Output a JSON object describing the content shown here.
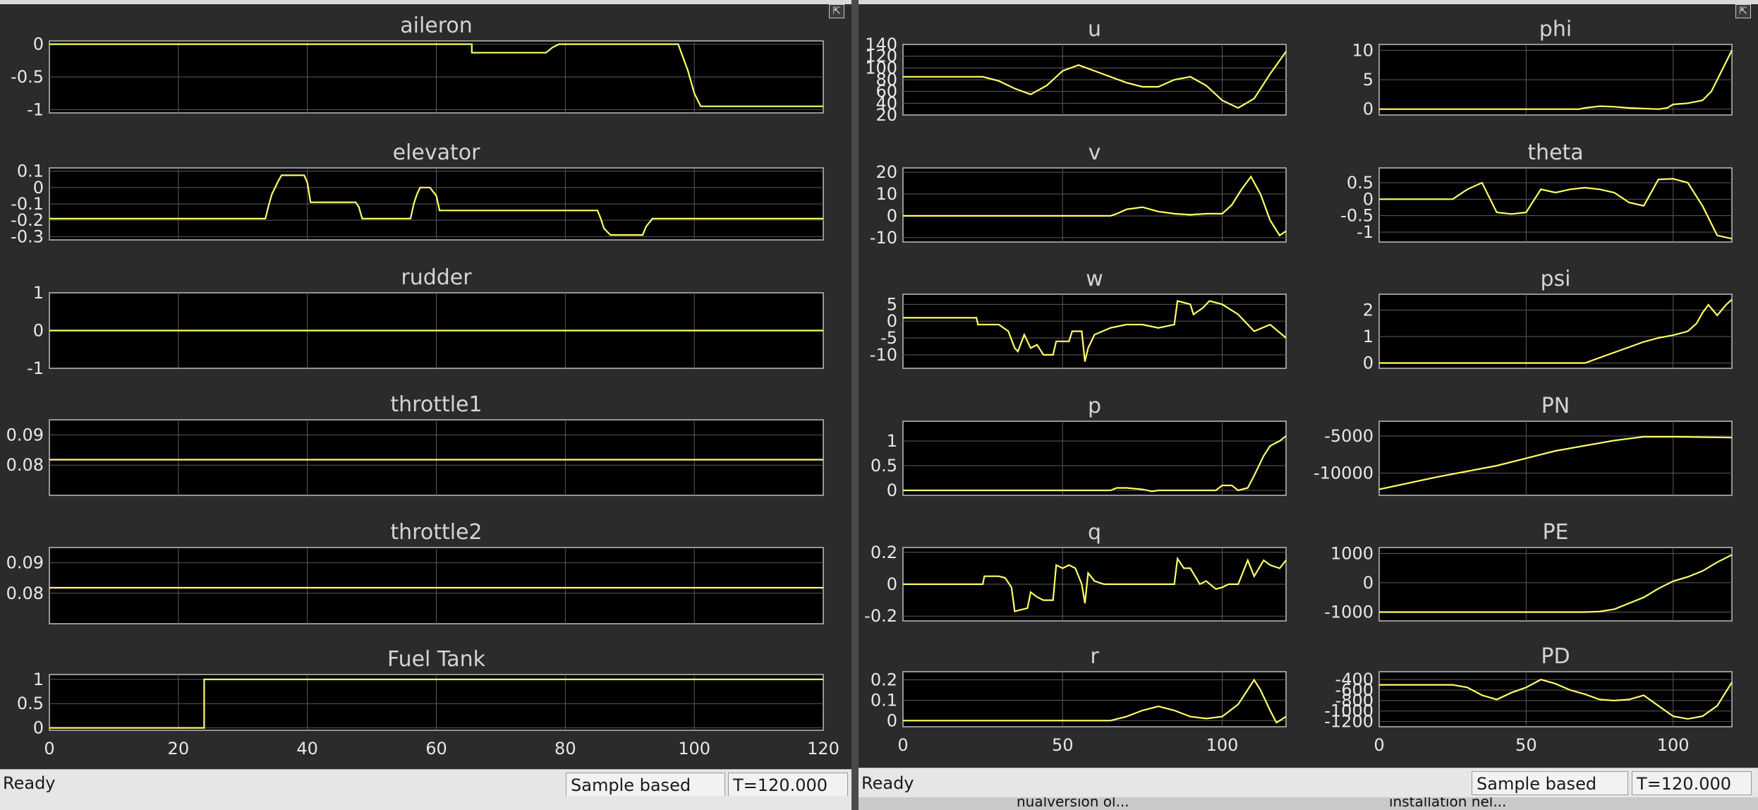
{
  "left_window": {
    "status": "Ready",
    "mode": "Sample based",
    "time": "T=120.000"
  },
  "right_window": {
    "status": "Ready",
    "mode": "Sample based",
    "time": "T=120.000"
  },
  "undock_icon": "undock-icon",
  "trace_color": "#ffff66",
  "background_fragments": [
    "nualversion ol...",
    "installation nel..."
  ],
  "chart_data": [
    {
      "id": "aileron",
      "type": "line",
      "title": "aileron",
      "xlim": [
        0,
        120
      ],
      "ylim": [
        -1.05,
        0.05
      ],
      "yticks": [
        0,
        -0.5,
        -1
      ],
      "yticklabels": [
        "0",
        "-0.5",
        "-1"
      ],
      "grid": true,
      "x": [
        0,
        65.5,
        65.5,
        77,
        78,
        79,
        97.5,
        99,
        100,
        101,
        120
      ],
      "y": [
        0,
        0,
        -0.13,
        -0.13,
        -0.05,
        0,
        0,
        -0.4,
        -0.75,
        -0.95,
        -0.95
      ]
    },
    {
      "id": "elevator",
      "type": "line",
      "title": "elevator",
      "xlim": [
        0,
        120
      ],
      "ylim": [
        -0.32,
        0.12
      ],
      "yticks": [
        0.1,
        0,
        -0.1,
        -0.2,
        -0.3
      ],
      "yticklabels": [
        "0.1",
        "0",
        "-0.1",
        "-0.2",
        "-0.3"
      ],
      "grid": true,
      "x": [
        0,
        33.5,
        34,
        34.5,
        35,
        35.5,
        36,
        39.5,
        40,
        40.5,
        47.5,
        48,
        48.5,
        56,
        56.5,
        57,
        57.5,
        59,
        60,
        60.5,
        85,
        85.5,
        86,
        87,
        92,
        92.5,
        93.5,
        120
      ],
      "y": [
        -0.19,
        -0.19,
        -0.11,
        -0.04,
        0.0,
        0.04,
        0.075,
        0.075,
        0.03,
        -0.09,
        -0.09,
        -0.12,
        -0.19,
        -0.19,
        -0.1,
        -0.04,
        0.0,
        0.0,
        -0.05,
        -0.14,
        -0.14,
        -0.19,
        -0.25,
        -0.29,
        -0.29,
        -0.24,
        -0.19,
        -0.19
      ]
    },
    {
      "id": "rudder",
      "type": "line",
      "title": "rudder",
      "xlim": [
        0,
        120
      ],
      "ylim": [
        -1,
        1
      ],
      "yticks": [
        1,
        0,
        -1
      ],
      "yticklabels": [
        "1",
        "0",
        "-1"
      ],
      "grid": true,
      "x": [
        0,
        120
      ],
      "y": [
        0,
        0
      ]
    },
    {
      "id": "throttle1",
      "type": "line",
      "title": "throttle1",
      "xlim": [
        0,
        120
      ],
      "ylim": [
        0.07,
        0.095
      ],
      "yticks": [
        0.09,
        0.08
      ],
      "yticklabels": [
        "0.09",
        "0.08"
      ],
      "grid": true,
      "x": [
        0,
        120
      ],
      "y": [
        0.0818,
        0.0818
      ]
    },
    {
      "id": "throttle2",
      "type": "line",
      "title": "throttle2",
      "xlim": [
        0,
        120
      ],
      "ylim": [
        0.07,
        0.095
      ],
      "yticks": [
        0.09,
        0.08
      ],
      "yticklabels": [
        "0.09",
        "0.08"
      ],
      "grid": true,
      "x": [
        0,
        120
      ],
      "y": [
        0.0818,
        0.0818
      ]
    },
    {
      "id": "fuel_tank",
      "type": "line",
      "title": "Fuel Tank",
      "xlim": [
        0,
        120
      ],
      "ylim": [
        -0.05,
        1.1
      ],
      "yticks": [
        1,
        0.5,
        0
      ],
      "yticklabels": [
        "1",
        "0.5",
        "0"
      ],
      "grid": true,
      "xticks": [
        0,
        20,
        40,
        60,
        80,
        100,
        120
      ],
      "xticklabels": [
        "0",
        "20",
        "40",
        "60",
        "80",
        "100",
        "120"
      ],
      "x": [
        0,
        24,
        24,
        120
      ],
      "y": [
        0,
        0,
        1,
        1
      ]
    },
    {
      "id": "u",
      "type": "line",
      "title": "u",
      "xlim": [
        0,
        120
      ],
      "ylim": [
        20,
        140
      ],
      "yticks": [
        140,
        120,
        100,
        80,
        60,
        40,
        20
      ],
      "yticklabels": [
        "140",
        "120",
        "100",
        "80",
        "60",
        "40",
        "20"
      ],
      "grid": true,
      "x": [
        0,
        25,
        30,
        35,
        40,
        45,
        50,
        55,
        60,
        65,
        70,
        75,
        80,
        85,
        90,
        95,
        100,
        105,
        110,
        115,
        120
      ],
      "y": [
        85,
        85,
        78,
        65,
        55,
        70,
        95,
        105,
        95,
        85,
        75,
        68,
        68,
        80,
        85,
        70,
        45,
        32,
        48,
        90,
        128
      ]
    },
    {
      "id": "phi",
      "type": "line",
      "title": "phi",
      "xlim": [
        0,
        120
      ],
      "ylim": [
        -1,
        11
      ],
      "yticks": [
        10,
        5,
        0
      ],
      "yticklabels": [
        "10",
        "5",
        "0"
      ],
      "grid": true,
      "x": [
        0,
        68,
        70,
        75,
        80,
        85,
        90,
        95,
        98,
        100,
        105,
        110,
        113,
        115,
        118,
        120
      ],
      "y": [
        0,
        0,
        0.2,
        0.5,
        0.4,
        0.2,
        0.1,
        0,
        0.2,
        0.8,
        1,
        1.5,
        3,
        5,
        8,
        10
      ]
    },
    {
      "id": "v",
      "type": "line",
      "title": "v",
      "xlim": [
        0,
        120
      ],
      "ylim": [
        -12,
        22
      ],
      "yticks": [
        20,
        10,
        0,
        -10
      ],
      "yticklabels": [
        "20",
        "10",
        "0",
        "-10"
      ],
      "grid": true,
      "x": [
        0,
        65,
        67,
        70,
        75,
        80,
        85,
        90,
        95,
        100,
        103,
        106,
        109,
        112,
        115,
        118,
        120
      ],
      "y": [
        0,
        0,
        1,
        3,
        4,
        2,
        1,
        0.5,
        1,
        1,
        5,
        12,
        18,
        10,
        -2,
        -9,
        -7
      ]
    },
    {
      "id": "theta",
      "type": "line",
      "title": "theta",
      "xlim": [
        0,
        120
      ],
      "ylim": [
        -1.3,
        0.95
      ],
      "yticks": [
        0.5,
        0,
        -0.5,
        -1
      ],
      "yticklabels": [
        "0.5",
        "0",
        "-0.5",
        "-1"
      ],
      "grid": true,
      "x": [
        0,
        25,
        30,
        35,
        40,
        45,
        50,
        55,
        60,
        65,
        70,
        75,
        80,
        85,
        90,
        95,
        100,
        105,
        110,
        115,
        120
      ],
      "y": [
        0,
        0,
        0.3,
        0.5,
        -0.4,
        -0.45,
        -0.4,
        0.3,
        0.2,
        0.3,
        0.35,
        0.3,
        0.2,
        -0.1,
        -0.2,
        0.6,
        0.62,
        0.5,
        -0.2,
        -1.1,
        -1.2
      ]
    },
    {
      "id": "w",
      "type": "line",
      "title": "w",
      "xlim": [
        0,
        120
      ],
      "ylim": [
        -14,
        8
      ],
      "yticks": [
        5,
        0,
        -5,
        -10
      ],
      "yticklabels": [
        "5",
        "0",
        "-5",
        "-10"
      ],
      "grid": true,
      "x": [
        0,
        23,
        23.5,
        30,
        33,
        35,
        36,
        38,
        40,
        42,
        44,
        47,
        48,
        52,
        53,
        56,
        57,
        58,
        60,
        65,
        70,
        75,
        80,
        85,
        86,
        90,
        91,
        94,
        96,
        100,
        105,
        110,
        115,
        120
      ],
      "y": [
        1,
        1,
        -1,
        -1,
        -3,
        -8,
        -9,
        -4,
        -8,
        -7,
        -10,
        -10,
        -6,
        -6,
        -3,
        -3,
        -12,
        -8,
        -4,
        -2,
        -1,
        -1,
        -2,
        -1,
        6,
        5,
        2,
        4,
        6,
        5,
        2,
        -3,
        -1,
        -5
      ]
    },
    {
      "id": "psi",
      "type": "line",
      "title": "psi",
      "xlim": [
        0,
        120
      ],
      "ylim": [
        -0.2,
        2.6
      ],
      "yticks": [
        2,
        1,
        0
      ],
      "yticklabels": [
        "2",
        "1",
        "0"
      ],
      "grid": true,
      "x": [
        0,
        70,
        75,
        80,
        85,
        90,
        95,
        100,
        105,
        108,
        110,
        112,
        115,
        118,
        120
      ],
      "y": [
        0,
        0,
        0.2,
        0.4,
        0.6,
        0.8,
        0.95,
        1.05,
        1.2,
        1.5,
        1.9,
        2.2,
        1.8,
        2.2,
        2.4
      ]
    },
    {
      "id": "p",
      "type": "line",
      "title": "p",
      "xlim": [
        0,
        120
      ],
      "ylim": [
        -0.1,
        1.4
      ],
      "yticks": [
        1,
        0.5,
        0
      ],
      "yticklabels": [
        "1",
        "0.5",
        "0"
      ],
      "grid": true,
      "x": [
        0,
        65,
        67,
        70,
        75,
        78,
        80,
        85,
        90,
        95,
        98,
        100,
        103,
        105,
        108,
        110,
        113,
        115,
        118,
        120
      ],
      "y": [
        0,
        0,
        0.05,
        0.05,
        0.02,
        -0.02,
        0,
        0,
        0,
        0,
        0,
        0.1,
        0.1,
        0,
        0.05,
        0.3,
        0.7,
        0.9,
        1.0,
        1.1
      ]
    },
    {
      "id": "PN",
      "type": "line",
      "title": "PN",
      "xlim": [
        0,
        120
      ],
      "ylim": [
        -13000,
        -3000
      ],
      "yticks": [
        -5000,
        -10000
      ],
      "yticklabels": [
        "-5000",
        "-10000"
      ],
      "grid": true,
      "x": [
        0,
        20,
        40,
        60,
        80,
        90,
        100,
        120
      ],
      "y": [
        -12200,
        -10500,
        -9000,
        -7000,
        -5600,
        -5100,
        -5100,
        -5200
      ]
    },
    {
      "id": "q",
      "type": "line",
      "title": "q",
      "xlim": [
        0,
        120
      ],
      "ylim": [
        -0.23,
        0.23
      ],
      "yticks": [
        0.2,
        0,
        -0.2
      ],
      "yticklabels": [
        "0.2",
        "0",
        "-0.2"
      ],
      "grid": true,
      "x": [
        0,
        25,
        25.5,
        30,
        32,
        34,
        35,
        37,
        39,
        40,
        42,
        44,
        47,
        48,
        50,
        52,
        54,
        56,
        57,
        58,
        60,
        63,
        65,
        70,
        75,
        80,
        85,
        86,
        88,
        90,
        93,
        95,
        98,
        100,
        102,
        105,
        108,
        110,
        113,
        115,
        118,
        120
      ],
      "y": [
        0,
        0,
        0.05,
        0.05,
        0.04,
        -0.02,
        -0.17,
        -0.16,
        -0.15,
        -0.05,
        -0.08,
        -0.1,
        -0.1,
        0.12,
        0.1,
        0.12,
        0.1,
        0,
        -0.12,
        0.07,
        0.02,
        0,
        0,
        0,
        0,
        0,
        0,
        0.16,
        0.1,
        0.1,
        0.0,
        0.02,
        -0.03,
        -0.02,
        0,
        0,
        0.15,
        0.05,
        0.15,
        0.12,
        0.1,
        0.15
      ]
    },
    {
      "id": "PE",
      "type": "line",
      "title": "PE",
      "xlim": [
        0,
        120
      ],
      "ylim": [
        -1300,
        1200
      ],
      "yticks": [
        1000,
        0,
        -1000
      ],
      "yticklabels": [
        "1000",
        "0",
        "-1000"
      ],
      "grid": true,
      "x": [
        0,
        65,
        70,
        75,
        80,
        85,
        90,
        95,
        100,
        105,
        110,
        115,
        120
      ],
      "y": [
        -1000,
        -1000,
        -1000,
        -980,
        -900,
        -700,
        -500,
        -200,
        50,
        200,
        400,
        700,
        950
      ]
    },
    {
      "id": "r",
      "type": "line",
      "title": "r",
      "xlim": [
        0,
        120
      ],
      "ylim": [
        -0.03,
        0.24
      ],
      "yticks": [
        0.2,
        0.1,
        0
      ],
      "yticklabels": [
        "0.2",
        "0.1",
        "0"
      ],
      "grid": true,
      "xticks": [
        0,
        50,
        100
      ],
      "xticklabels": [
        "0",
        "50",
        "100"
      ],
      "x": [
        0,
        65,
        70,
        75,
        80,
        85,
        90,
        95,
        100,
        105,
        110,
        112,
        115,
        117,
        120
      ],
      "y": [
        0,
        0,
        0.02,
        0.05,
        0.07,
        0.05,
        0.02,
        0.01,
        0.02,
        0.08,
        0.2,
        0.15,
        0.05,
        -0.01,
        0.02
      ]
    },
    {
      "id": "PD",
      "type": "line",
      "title": "PD",
      "xlim": [
        0,
        120
      ],
      "ylim": [
        -1300,
        -250
      ],
      "yticks": [
        -400,
        -600,
        -800,
        -1000,
        -1200
      ],
      "yticklabels": [
        "-400",
        "-600",
        "-800",
        "-1000",
        "-1200"
      ],
      "grid": true,
      "xticks": [
        0,
        50,
        100
      ],
      "xticklabels": [
        "0",
        "50",
        "100"
      ],
      "x": [
        0,
        25,
        30,
        35,
        40,
        45,
        50,
        55,
        60,
        65,
        70,
        75,
        80,
        85,
        90,
        95,
        100,
        105,
        110,
        115,
        120
      ],
      "y": [
        -500,
        -500,
        -550,
        -700,
        -780,
        -650,
        -550,
        -400,
        -480,
        -600,
        -680,
        -780,
        -800,
        -780,
        -700,
        -900,
        -1100,
        -1150,
        -1100,
        -900,
        -450
      ]
    }
  ]
}
